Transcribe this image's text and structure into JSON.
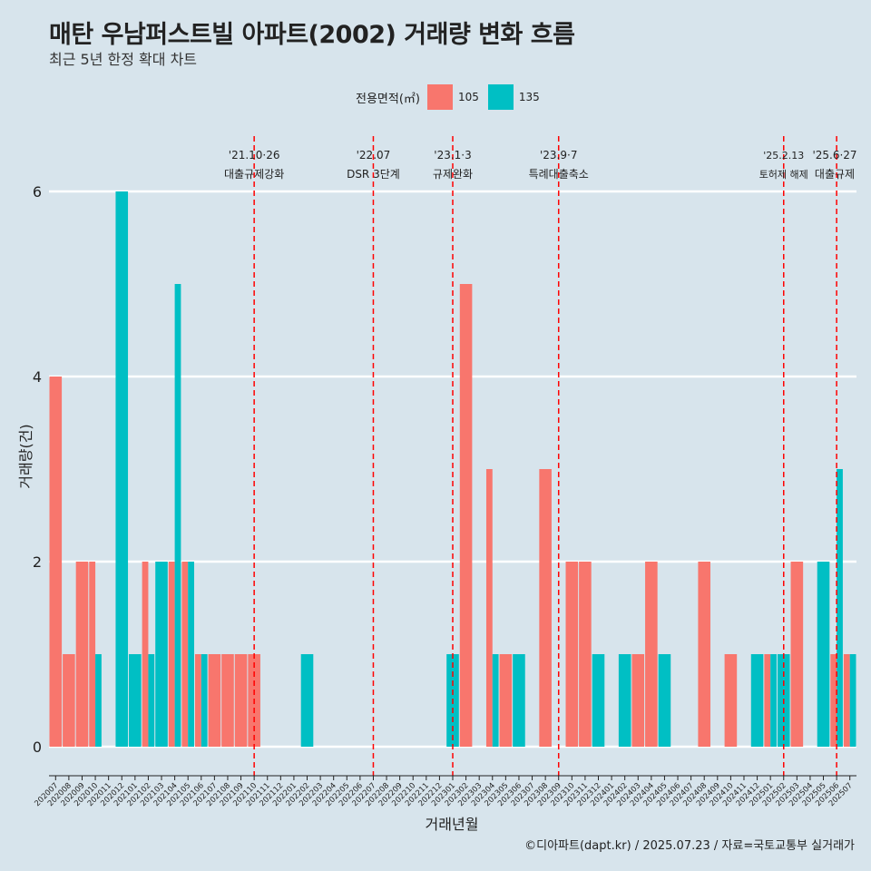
{
  "title": "매탄 우남퍼스트빌 아파트(2002) 거래량 변화 흐름",
  "subtitle": "최근 5년 한정 확대 차트",
  "legend": {
    "title": "전용면적(㎡)",
    "items": [
      {
        "label": "105",
        "color": "#f8766d"
      },
      {
        "label": "135",
        "color": "#00bfc4"
      }
    ]
  },
  "caption": "©디아파트(dapt.kr) / 2025.07.23 / 자료=국토교통부 실거래가",
  "chart_data": {
    "type": "bar",
    "title": "매탄 우남퍼스트빌 아파트(2002) 거래량 변화 흐름",
    "xlabel": "거래년월",
    "ylabel": "거래량(건)",
    "ylim": [
      0,
      6
    ],
    "yticks": [
      0,
      2,
      4,
      6
    ],
    "categories": [
      "202007",
      "202008",
      "202009",
      "202010",
      "202011",
      "202012",
      "202101",
      "202102",
      "202103",
      "202104",
      "202105",
      "202106",
      "202107",
      "202108",
      "202109",
      "202110",
      "202111",
      "202112",
      "202201",
      "202202",
      "202203",
      "202204",
      "202205",
      "202206",
      "202207",
      "202208",
      "202209",
      "202210",
      "202211",
      "202212",
      "202301",
      "202302",
      "202303",
      "202304",
      "202305",
      "202306",
      "202307",
      "202308",
      "202309",
      "202310",
      "202311",
      "202312",
      "202401",
      "202402",
      "202403",
      "202404",
      "202405",
      "202406",
      "202407",
      "202408",
      "202409",
      "202410",
      "202411",
      "202412",
      "202501",
      "202502",
      "202503",
      "202504",
      "202505",
      "202506",
      "202507"
    ],
    "series": [
      {
        "name": "105",
        "color": "#f8766d",
        "values": [
          4,
          1,
          2,
          2,
          0,
          0,
          0,
          2,
          0,
          2,
          2,
          1,
          1,
          1,
          1,
          1,
          0,
          0,
          0,
          0,
          0,
          0,
          0,
          0,
          0,
          0,
          0,
          0,
          0,
          0,
          0,
          5,
          0,
          3,
          1,
          0,
          0,
          3,
          0,
          2,
          2,
          0,
          0,
          0,
          1,
          2,
          0,
          0,
          0,
          2,
          0,
          1,
          0,
          0,
          1,
          0,
          2,
          0,
          0,
          1,
          1
        ]
      },
      {
        "name": "135",
        "color": "#00bfc4",
        "values": [
          0,
          0,
          0,
          1,
          0,
          6,
          1,
          1,
          2,
          5,
          2,
          1,
          0,
          0,
          0,
          0,
          0,
          0,
          0,
          1,
          0,
          0,
          0,
          0,
          0,
          0,
          0,
          0,
          0,
          0,
          1,
          0,
          0,
          1,
          0,
          1,
          0,
          0,
          0,
          0,
          0,
          1,
          0,
          1,
          0,
          0,
          1,
          0,
          0,
          0,
          0,
          0,
          0,
          1,
          1,
          1,
          0,
          0,
          2,
          3,
          1
        ]
      }
    ],
    "annotations": [
      {
        "date": "'21.10·26",
        "label": "대출규제강화",
        "month": "202110"
      },
      {
        "date": "'22.07",
        "label": "DSR 3단계",
        "month": "202207"
      },
      {
        "date": "'23.1·3",
        "label": "규제완화",
        "month": "202301"
      },
      {
        "date": "'23.9·7",
        "label": "특례대출축소",
        "month": "202309"
      },
      {
        "date": "'25.2.13",
        "label": "토허제 해제",
        "month": "202502"
      },
      {
        "date": "'25.6·27",
        "label": "대출규제",
        "month": "202506"
      }
    ]
  }
}
